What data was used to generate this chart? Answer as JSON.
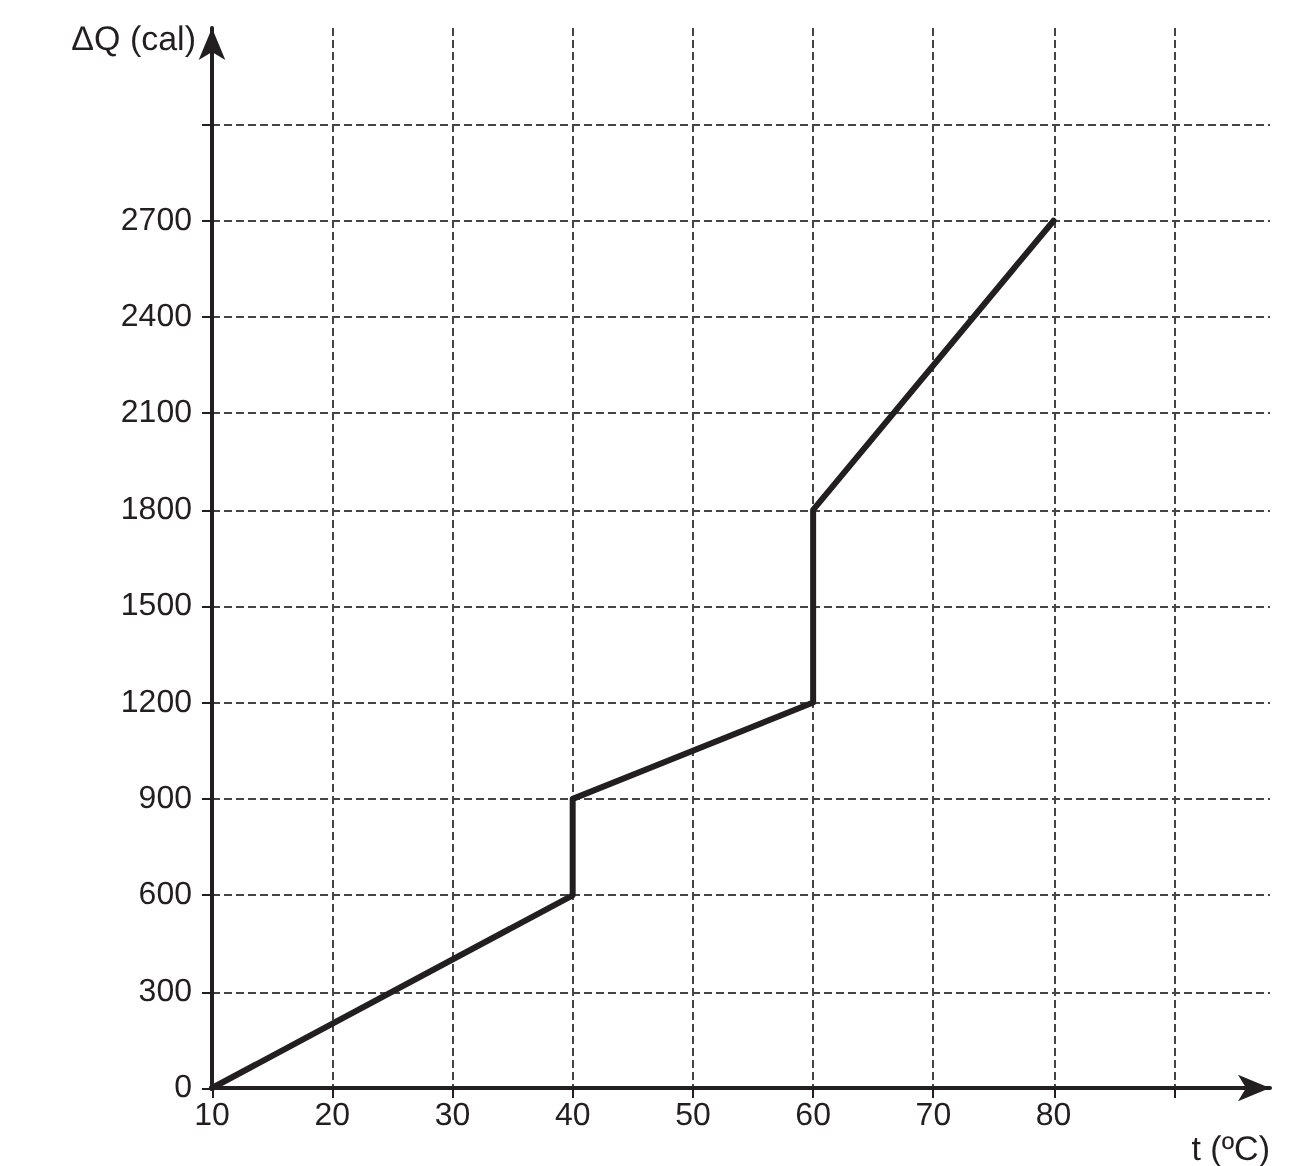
{
  "chart_data": {
    "type": "line",
    "xlabel": "t (ºC)",
    "ylabel": "ΔQ (cal)",
    "x": [
      10,
      40,
      40,
      60,
      60,
      80
    ],
    "series": [
      {
        "color": "#231f20",
        "values": [
          0,
          600,
          900,
          1200,
          1800,
          2700
        ]
      }
    ],
    "xlim": [
      10,
      98
    ],
    "xticks": [
      10,
      20,
      30,
      40,
      50,
      60,
      70,
      80,
      {
        "value": 90,
        "label": null
      }
    ],
    "ylim": [
      0,
      3300
    ],
    "yticks": [
      0,
      300,
      600,
      900,
      1200,
      1500,
      1800,
      2100,
      2400,
      2700,
      {
        "value": 3000,
        "label": null
      }
    ],
    "grid": true,
    "marker": "none",
    "line_style": "solid"
  }
}
